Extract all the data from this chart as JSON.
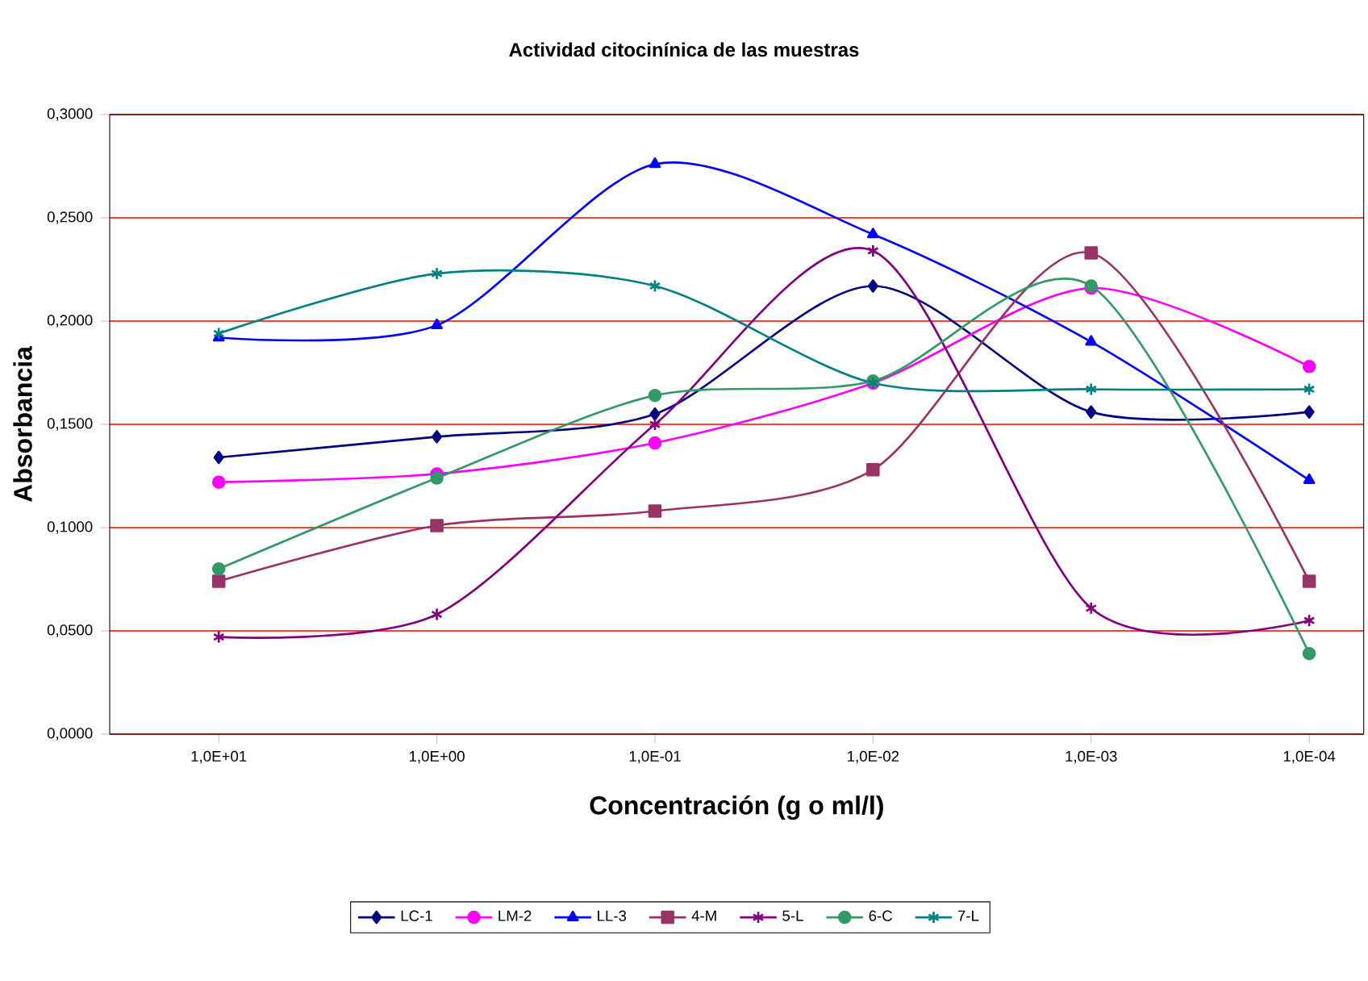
{
  "chart_data": {
    "type": "line",
    "title": "Actividad citocinínica de las muestras",
    "xlabel": "Concentración (g o ml/l)",
    "ylabel": "Absorbancia",
    "categories": [
      "1,0E+01",
      "1,0E+00",
      "1,0E-01",
      "1,0E-02",
      "1,0E-03",
      "1,0E-04"
    ],
    "ylim": [
      0,
      0.3
    ],
    "yticks": [
      {
        "value": 0,
        "label": "0,0000"
      },
      {
        "value": 0.05,
        "label": "0,0500"
      },
      {
        "value": 0.1,
        "label": "0,1000"
      },
      {
        "value": 0.15,
        "label": "0,1500"
      },
      {
        "value": 0.2,
        "label": "0,2000"
      },
      {
        "value": 0.25,
        "label": "0,2500"
      },
      {
        "value": 0.3,
        "label": "0,3000"
      }
    ],
    "grid": "y",
    "legend": "bottom",
    "line_style": "solid",
    "series": [
      {
        "name": "LC-1",
        "color": "#000080",
        "marker": "diamond",
        "values": [
          0.134,
          0.144,
          0.155,
          0.217,
          0.156,
          0.156
        ]
      },
      {
        "name": "LM-2",
        "color": "#ff00ff",
        "marker": "circle",
        "values": [
          0.122,
          0.126,
          0.141,
          0.17,
          0.216,
          0.178
        ]
      },
      {
        "name": "LL-3",
        "color": "#0000ff",
        "marker": "triangle",
        "values": [
          0.192,
          0.198,
          0.276,
          0.242,
          0.19,
          0.123
        ]
      },
      {
        "name": "4-M",
        "color": "#993366",
        "marker": "square",
        "values": [
          0.074,
          0.101,
          0.108,
          0.128,
          0.233,
          0.074
        ]
      },
      {
        "name": "5-L",
        "color": "#800080",
        "marker": "cross",
        "values": [
          0.047,
          0.058,
          0.15,
          0.234,
          0.061,
          0.055
        ]
      },
      {
        "name": "6-C",
        "color": "#339966",
        "marker": "circle",
        "values": [
          0.08,
          0.124,
          0.164,
          0.171,
          0.217,
          0.039
        ]
      },
      {
        "name": "7-L",
        "color": "#008080",
        "marker": "cross",
        "values": [
          0.194,
          0.223,
          0.217,
          0.17,
          0.167,
          0.167
        ]
      }
    ]
  }
}
